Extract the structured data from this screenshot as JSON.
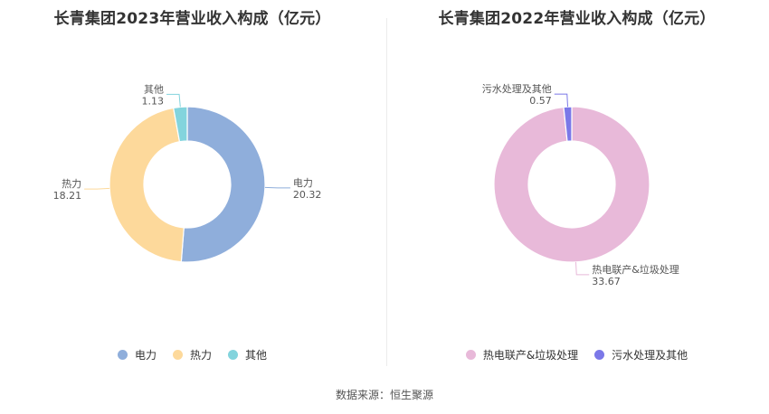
{
  "source": "数据来源：恒生聚源",
  "chart_data": [
    {
      "type": "pie",
      "title": "长青集团2023年营业收入构成（亿元）",
      "categories": [
        "电力",
        "热力",
        "其他"
      ],
      "values": [
        20.32,
        18.21,
        1.13
      ],
      "value_labels": [
        "20.32",
        "18.21",
        "1.13"
      ],
      "colors": [
        "#8FAEDB",
        "#FDD99B",
        "#83D4DD"
      ],
      "legend": "bottom"
    },
    {
      "type": "pie",
      "title": "长青集团2022年营业收入构成（亿元）",
      "categories": [
        "热电联产&垃圾处理",
        "污水处理及其他"
      ],
      "values": [
        33.67,
        0.57
      ],
      "value_labels": [
        "33.67",
        "0.57"
      ],
      "colors": [
        "#E8B9D9",
        "#7B78E8"
      ],
      "legend": "bottom"
    }
  ]
}
